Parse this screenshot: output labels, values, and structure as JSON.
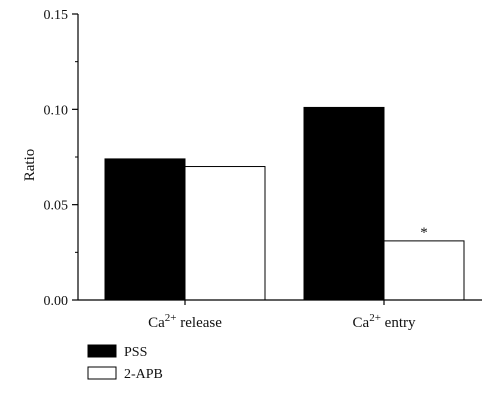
{
  "chart_data": {
    "type": "bar",
    "ylabel": "Ratio",
    "ylim": [
      0,
      0.15
    ],
    "yticks": [
      "0.00",
      "0.05",
      "0.10",
      "0.15"
    ],
    "categories": [
      {
        "base": "Ca",
        "sup": "2+",
        "rest": " release"
      },
      {
        "base": "Ca",
        "sup": "2+",
        "rest": " entry"
      }
    ],
    "series": [
      {
        "name": "PSS",
        "color": "#000000",
        "values": [
          0.074,
          0.101
        ]
      },
      {
        "name": "2-APB",
        "color": "#ffffff",
        "values": [
          0.07,
          0.031
        ]
      }
    ],
    "annotations": [
      {
        "category_index": 1,
        "series_index": 1,
        "text": "*"
      }
    ],
    "legend_position": "bottom-left",
    "grid": false
  }
}
